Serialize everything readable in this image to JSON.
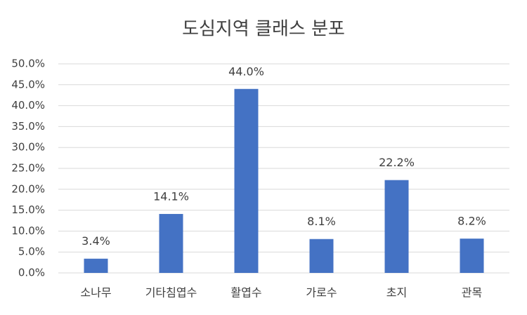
{
  "chart_data": {
    "type": "bar",
    "title": "도심지역 클래스 분포",
    "categories": [
      "소나무",
      "기타침엽수",
      "활엽수",
      "가로수",
      "초지",
      "관목"
    ],
    "values": [
      3.4,
      14.1,
      44.0,
      8.1,
      22.2,
      8.2
    ],
    "value_labels": [
      "3.4%",
      "14.1%",
      "44.0%",
      "8.1%",
      "22.2%",
      "8.2%"
    ],
    "color": "#4472c4",
    "ylim": [
      0,
      50
    ],
    "yticks": [
      {
        "value": 0,
        "label": "0.0%"
      },
      {
        "value": 5,
        "label": "5.0%"
      },
      {
        "value": 10,
        "label": "10.0%"
      },
      {
        "value": 15,
        "label": "15.0%"
      },
      {
        "value": 20,
        "label": "20.0%"
      },
      {
        "value": 25,
        "label": "25.0%"
      },
      {
        "value": 30,
        "label": "30.0%"
      },
      {
        "value": 35,
        "label": "35.0%"
      },
      {
        "value": 40,
        "label": "40.0%"
      },
      {
        "value": 45,
        "label": "45.0%"
      },
      {
        "value": 50,
        "label": "50.0%"
      }
    ],
    "grid": true
  }
}
